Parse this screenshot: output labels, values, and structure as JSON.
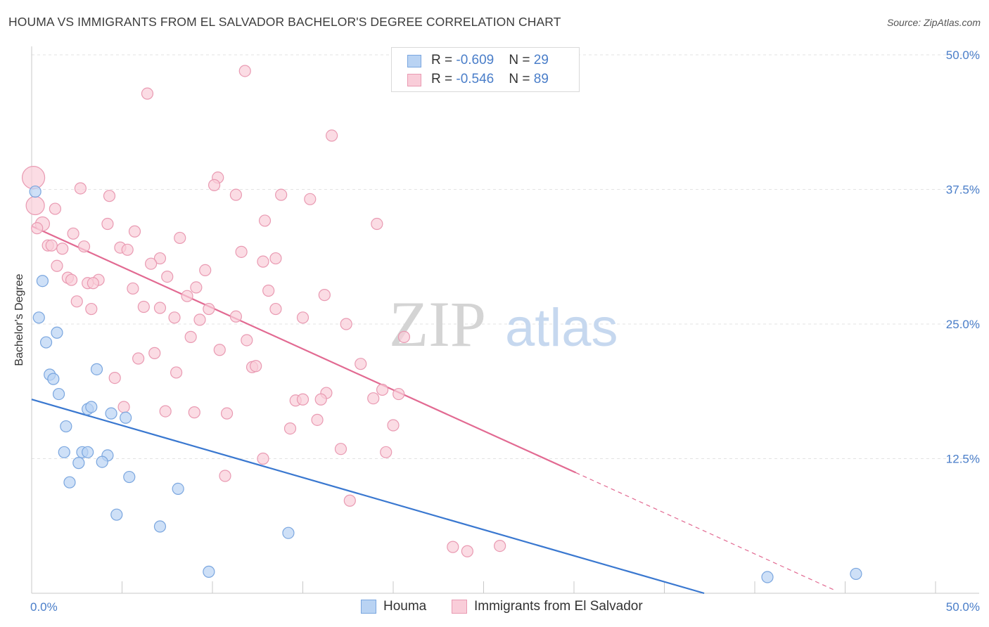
{
  "header": {
    "title": "HOUMA VS IMMIGRANTS FROM EL SALVADOR BACHELOR'S DEGREE CORRELATION CHART",
    "source": "Source: ZipAtlas.com"
  },
  "watermark": {
    "zip": "ZIP",
    "atlas": "atlas"
  },
  "legend": {
    "r_label": "R = ",
    "n_label": "N = ",
    "rows": [
      {
        "r": "-0.609",
        "n": "29",
        "fill": "#b9d3f3",
        "stroke": "#7aa6df"
      },
      {
        "r": "-0.546",
        "n": "89",
        "fill": "#f9cdd9",
        "stroke": "#e99ab2"
      }
    ]
  },
  "bottom_legend": [
    {
      "label": "Houma",
      "fill": "#b9d3f3",
      "stroke": "#7aa6df"
    },
    {
      "label": "Immigrants from El Salvador",
      "fill": "#f9cdd9",
      "stroke": "#e99ab2"
    }
  ],
  "chart_data": {
    "type": "scatter",
    "title": "HOUMA VS IMMIGRANTS FROM EL SALVADOR BACHELOR'S DEGREE CORRELATION CHART",
    "xlabel": "",
    "ylabel": "Bachelor's Degree",
    "xlim": [
      0,
      50
    ],
    "ylim": [
      0,
      50
    ],
    "x_tick_labels": [
      "0.0%",
      "50.0%"
    ],
    "y_ticks": [
      12.5,
      25.0,
      37.5,
      50.0
    ],
    "y_tick_labels": [
      "12.5%",
      "25.0%",
      "37.5%",
      "50.0%"
    ],
    "grid": true,
    "legend_position": "top-center",
    "series": [
      {
        "name": "Houma",
        "color": "#7aa6df",
        "fill": "#b9d3f3",
        "trend_color": "#3a78d0",
        "trend": {
          "x0": 0.0,
          "y0": 18.0,
          "x1": 37.2,
          "y1": 0.0
        },
        "points": [
          [
            0.2,
            37.3
          ],
          [
            0.6,
            29.0
          ],
          [
            0.4,
            25.6
          ],
          [
            0.8,
            23.3
          ],
          [
            1.4,
            24.2
          ],
          [
            1.0,
            20.3
          ],
          [
            1.2,
            19.9
          ],
          [
            1.5,
            18.5
          ],
          [
            3.6,
            20.8
          ],
          [
            1.9,
            15.5
          ],
          [
            3.1,
            17.1
          ],
          [
            3.3,
            17.3
          ],
          [
            4.4,
            16.7
          ],
          [
            5.2,
            16.3
          ],
          [
            1.8,
            13.1
          ],
          [
            2.8,
            13.1
          ],
          [
            3.1,
            13.1
          ],
          [
            4.2,
            12.8
          ],
          [
            2.6,
            12.1
          ],
          [
            3.9,
            12.2
          ],
          [
            2.1,
            10.3
          ],
          [
            5.4,
            10.8
          ],
          [
            8.1,
            9.7
          ],
          [
            4.7,
            7.3
          ],
          [
            7.1,
            6.2
          ],
          [
            14.2,
            5.6
          ],
          [
            9.8,
            2.0
          ],
          [
            40.7,
            1.5
          ],
          [
            45.6,
            1.8
          ]
        ]
      },
      {
        "name": "Immigrants from El Salvador",
        "color": "#e99ab2",
        "fill": "#f9cdd9",
        "trend_color": "#e26a92",
        "trend": {
          "x0": 0.0,
          "y0": 34.1,
          "x1": 30.1,
          "y1": 11.2
        },
        "trend_dash": {
          "x0": 30.1,
          "y0": 11.2,
          "x1": 44.4,
          "y1": 0.3
        },
        "points": [
          [
            0.1,
            38.6
          ],
          [
            0.2,
            36.0
          ],
          [
            0.6,
            34.3
          ],
          [
            1.3,
            35.7
          ],
          [
            2.7,
            37.6
          ],
          [
            4.3,
            36.9
          ],
          [
            6.4,
            46.4
          ],
          [
            11.8,
            48.5
          ],
          [
            16.6,
            42.5
          ],
          [
            10.3,
            38.6
          ],
          [
            10.1,
            37.9
          ],
          [
            11.3,
            37.0
          ],
          [
            13.8,
            37.0
          ],
          [
            15.4,
            36.6
          ],
          [
            12.9,
            34.6
          ],
          [
            19.1,
            34.3
          ],
          [
            4.2,
            34.3
          ],
          [
            5.7,
            33.6
          ],
          [
            2.3,
            33.4
          ],
          [
            8.2,
            33.0
          ],
          [
            0.9,
            32.3
          ],
          [
            1.1,
            32.3
          ],
          [
            1.7,
            32.0
          ],
          [
            2.9,
            32.2
          ],
          [
            4.9,
            32.1
          ],
          [
            5.3,
            31.9
          ],
          [
            11.6,
            31.7
          ],
          [
            13.5,
            31.1
          ],
          [
            7.1,
            31.1
          ],
          [
            6.6,
            30.6
          ],
          [
            12.8,
            30.8
          ],
          [
            1.4,
            30.4
          ],
          [
            9.6,
            30.0
          ],
          [
            2.0,
            29.3
          ],
          [
            3.7,
            29.1
          ],
          [
            2.2,
            29.1
          ],
          [
            3.1,
            28.8
          ],
          [
            3.4,
            28.8
          ],
          [
            5.6,
            28.3
          ],
          [
            9.1,
            28.4
          ],
          [
            7.5,
            29.4
          ],
          [
            13.1,
            28.1
          ],
          [
            16.2,
            27.7
          ],
          [
            8.6,
            27.6
          ],
          [
            2.5,
            27.1
          ],
          [
            3.3,
            26.4
          ],
          [
            6.2,
            26.6
          ],
          [
            7.1,
            26.5
          ],
          [
            9.8,
            26.4
          ],
          [
            13.5,
            26.4
          ],
          [
            7.9,
            25.6
          ],
          [
            9.3,
            25.4
          ],
          [
            11.3,
            25.7
          ],
          [
            15.0,
            25.6
          ],
          [
            17.4,
            25.0
          ],
          [
            8.8,
            23.8
          ],
          [
            10.4,
            22.6
          ],
          [
            11.9,
            23.5
          ],
          [
            20.6,
            23.8
          ],
          [
            6.8,
            22.3
          ],
          [
            5.9,
            21.8
          ],
          [
            18.2,
            21.3
          ],
          [
            12.2,
            21.0
          ],
          [
            12.4,
            21.1
          ],
          [
            8.0,
            20.5
          ],
          [
            4.6,
            20.0
          ],
          [
            19.4,
            18.9
          ],
          [
            20.3,
            18.5
          ],
          [
            16.3,
            18.6
          ],
          [
            18.9,
            18.1
          ],
          [
            14.6,
            17.9
          ],
          [
            15.0,
            18.0
          ],
          [
            16.0,
            18.0
          ],
          [
            5.1,
            17.3
          ],
          [
            7.4,
            16.9
          ],
          [
            9.0,
            16.8
          ],
          [
            10.8,
            16.7
          ],
          [
            15.8,
            16.1
          ],
          [
            14.3,
            15.3
          ],
          [
            20.0,
            15.6
          ],
          [
            17.1,
            13.4
          ],
          [
            19.6,
            13.1
          ],
          [
            12.8,
            12.5
          ],
          [
            10.7,
            10.9
          ],
          [
            17.6,
            8.6
          ],
          [
            23.3,
            4.3
          ],
          [
            24.1,
            3.9
          ],
          [
            25.9,
            4.4
          ],
          [
            0.3,
            33.9
          ]
        ],
        "sizes_note": "larger markers at x=0.1 and x=0.2"
      }
    ]
  }
}
